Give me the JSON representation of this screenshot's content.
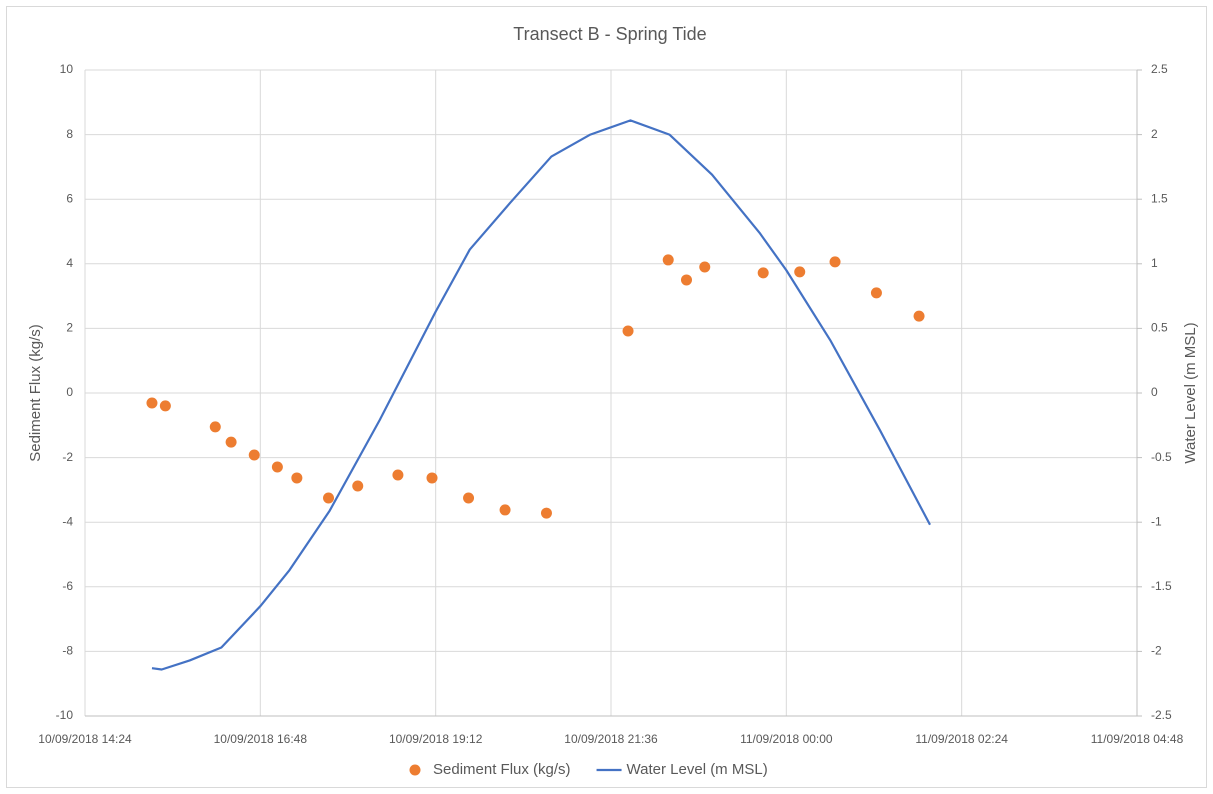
{
  "chart_data": {
    "type": "combo",
    "title": "Transect B - Spring Tide",
    "y_label": "Sediment Flux (kg/s)",
    "y2_label": "Water Level (m MSL)",
    "xlim": [
      "10/09/2018 14:24",
      "11/09/2018 04:48"
    ],
    "xticks": [
      "10/09/2018 14:24",
      "10/09/2018 16:48",
      "10/09/2018 19:12",
      "10/09/2018 21:36",
      "11/09/2018 00:00",
      "11/09/2018 02:24",
      "11/09/2018 04:48"
    ],
    "ylim": [
      -10,
      10
    ],
    "yticks": [
      -10,
      -8,
      -6,
      -4,
      -2,
      0,
      2,
      4,
      6,
      8,
      10
    ],
    "y2lim": [
      -2.5,
      2.5
    ],
    "y2ticks": [
      -2.5,
      -2,
      -1.5,
      -1,
      -0.5,
      0,
      0.5,
      1,
      1.5,
      2,
      2.5
    ],
    "grid": true,
    "legend": "bottom",
    "series": [
      {
        "name": "Sediment Flux (kg/s)",
        "type": "scatter",
        "color": "#ed7d31",
        "x": [
          "10/09/2018 15:19",
          "10/09/2018 15:30",
          "10/09/2018 16:11",
          "10/09/2018 16:24",
          "10/09/2018 16:43",
          "10/09/2018 17:02",
          "10/09/2018 17:18",
          "10/09/2018 17:44",
          "10/09/2018 18:08",
          "10/09/2018 18:41",
          "10/09/2018 19:09",
          "10/09/2018 19:39",
          "10/09/2018 20:09",
          "10/09/2018 20:43",
          "10/09/2018 21:50",
          "10/09/2018 22:23",
          "10/09/2018 22:38",
          "10/09/2018 22:53",
          "10/09/2018 23:41",
          "11/09/2018 00:11",
          "11/09/2018 00:40",
          "11/09/2018 01:14",
          "11/09/2018 01:49"
        ],
        "values": [
          -0.31,
          -0.4,
          -1.05,
          -1.52,
          -1.92,
          -2.29,
          -2.63,
          -3.25,
          -2.88,
          -2.54,
          -2.63,
          -3.25,
          -3.62,
          -3.72,
          1.92,
          4.12,
          3.5,
          3.9,
          3.72,
          3.75,
          4.06,
          3.1,
          2.38
        ]
      },
      {
        "name": "Water Level (m MSL)",
        "type": "line",
        "axis": "y2",
        "color": "#4472c4",
        "x": [
          "10/09/2018 15:19",
          "10/09/2018 15:27",
          "10/09/2018 15:50",
          "10/09/2018 16:16",
          "10/09/2018 16:48",
          "10/09/2018 17:12",
          "10/09/2018 17:45",
          "10/09/2018 18:26",
          "10/09/2018 19:12",
          "10/09/2018 19:40",
          "10/09/2018 20:13",
          "10/09/2018 20:47",
          "10/09/2018 21:19",
          "10/09/2018 21:52",
          "10/09/2018 22:24",
          "10/09/2018 22:59",
          "10/09/2018 23:38",
          "11/09/2018 00:00",
          "11/09/2018 00:36",
          "11/09/2018 01:17",
          "11/09/2018 01:58"
        ],
        "values": [
          -2.13,
          -2.14,
          -2.07,
          -1.97,
          -1.65,
          -1.37,
          -0.91,
          -0.21,
          0.63,
          1.11,
          1.47,
          1.83,
          2.0,
          2.11,
          2.0,
          1.69,
          1.24,
          0.95,
          0.41,
          -0.29,
          -1.02
        ]
      }
    ]
  }
}
